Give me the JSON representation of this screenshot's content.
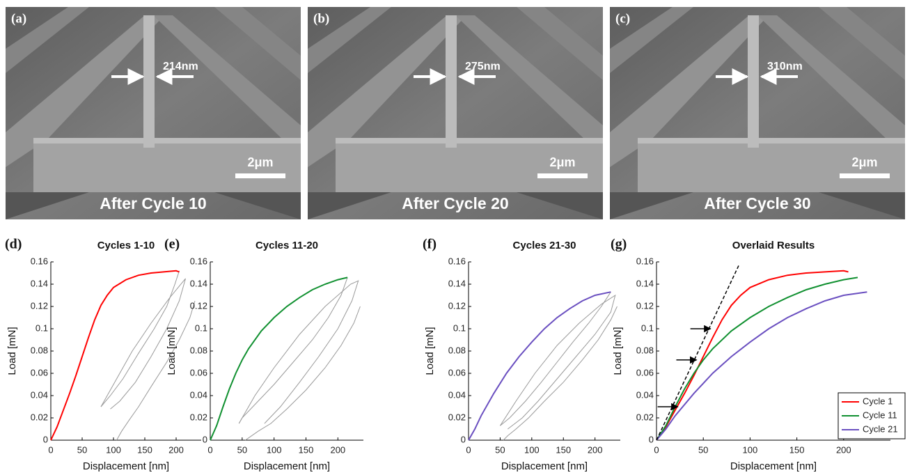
{
  "images": [
    {
      "panel": "(a)",
      "width_label": "214nm",
      "scale_label": "2μm",
      "caption": "After Cycle 10"
    },
    {
      "panel": "(b)",
      "width_label": "275nm",
      "scale_label": "2μm",
      "caption": "After Cycle 20"
    },
    {
      "panel": "(c)",
      "width_label": "310nm",
      "scale_label": "2μm",
      "caption": "After Cycle 30"
    }
  ],
  "chart_data": [
    {
      "type": "line",
      "panel": "(d)",
      "title": "Cycles 1-10",
      "x_label": "Displacement [nm]",
      "y_label": "Load [mN]",
      "xlim": [
        0,
        240
      ],
      "ylim": [
        0,
        0.16
      ],
      "xticks": [
        0,
        50,
        100,
        150,
        200
      ],
      "yticks": [
        0,
        0.02,
        0.04,
        0.06,
        0.08,
        0.1,
        0.12,
        0.14,
        0.16
      ],
      "series": [
        {
          "color": "#999999",
          "x": [
            205,
            198,
            185,
            165,
            140,
            115,
            95,
            80
          ],
          "values": [
            0.152,
            0.14,
            0.12,
            0.1,
            0.078,
            0.055,
            0.04,
            0.03
          ]
        },
        {
          "color": "#999999",
          "x": [
            80,
            100,
            130,
            160,
            190,
            212,
            215,
            205,
            185,
            160,
            135,
            110,
            95
          ],
          "values": [
            0.03,
            0.05,
            0.08,
            0.105,
            0.128,
            0.143,
            0.145,
            0.125,
            0.1,
            0.075,
            0.052,
            0.035,
            0.028
          ]
        },
        {
          "color": "#999999",
          "x": [
            230,
            222,
            205,
            185,
            160,
            140,
            125,
            113,
            105
          ],
          "values": [
            0.125,
            0.11,
            0.09,
            0.07,
            0.048,
            0.03,
            0.018,
            0.008,
            0
          ]
        },
        {
          "color": "#ff0000",
          "x": [
            0,
            10,
            20,
            30,
            40,
            50,
            60,
            70,
            80,
            90,
            100,
            120,
            140,
            160,
            180,
            200,
            205
          ],
          "values": [
            0,
            0.012,
            0.027,
            0.042,
            0.058,
            0.075,
            0.092,
            0.108,
            0.121,
            0.13,
            0.137,
            0.144,
            0.148,
            0.15,
            0.151,
            0.152,
            0.151
          ]
        }
      ]
    },
    {
      "type": "line",
      "panel": "(e)",
      "title": "Cycles 11-20",
      "x_label": "Displacement [nm]",
      "y_label": "Load [mN]",
      "xlim": [
        0,
        240
      ],
      "ylim": [
        0,
        0.16
      ],
      "xticks": [
        0,
        50,
        100,
        150,
        200
      ],
      "yticks": [
        0,
        0.02,
        0.04,
        0.06,
        0.08,
        0.1,
        0.12,
        0.14,
        0.16
      ],
      "series": [
        {
          "color": "#999999",
          "x": [
            215,
            205,
            185,
            160,
            130,
            100,
            75,
            50,
            45
          ],
          "values": [
            0.146,
            0.13,
            0.11,
            0.09,
            0.07,
            0.05,
            0.035,
            0.02,
            0.015
          ]
        },
        {
          "color": "#999999",
          "x": [
            45,
            70,
            100,
            140,
            180,
            220,
            232,
            222,
            200,
            170,
            140,
            110,
            85
          ],
          "values": [
            0.015,
            0.04,
            0.065,
            0.095,
            0.12,
            0.14,
            0.143,
            0.125,
            0.1,
            0.075,
            0.052,
            0.03,
            0.015
          ]
        },
        {
          "color": "#999999",
          "x": [
            235,
            225,
            205,
            180,
            150,
            120,
            95,
            75,
            60,
            55
          ],
          "values": [
            0.12,
            0.105,
            0.085,
            0.065,
            0.045,
            0.028,
            0.015,
            0.008,
            0.002,
            0
          ]
        },
        {
          "color": "#109030",
          "x": [
            0,
            10,
            20,
            30,
            40,
            50,
            60,
            80,
            100,
            120,
            140,
            160,
            180,
            200,
            215
          ],
          "values": [
            0,
            0.013,
            0.03,
            0.046,
            0.06,
            0.072,
            0.082,
            0.098,
            0.11,
            0.12,
            0.128,
            0.135,
            0.14,
            0.144,
            0.146
          ]
        }
      ]
    },
    {
      "type": "line",
      "panel": "(f)",
      "title": "Cycles 21-30",
      "x_label": "Displacement [nm]",
      "y_label": "Load [mN]",
      "xlim": [
        0,
        240
      ],
      "ylim": [
        0,
        0.16
      ],
      "xticks": [
        0,
        50,
        100,
        150,
        200
      ],
      "yticks": [
        0,
        0.02,
        0.04,
        0.06,
        0.08,
        0.1,
        0.12,
        0.14,
        0.16
      ],
      "series": [
        {
          "color": "#999999",
          "x": [
            225,
            210,
            190,
            165,
            140,
            115,
            90,
            65,
            50
          ],
          "values": [
            0.133,
            0.12,
            0.105,
            0.088,
            0.07,
            0.052,
            0.035,
            0.02,
            0.013
          ]
        },
        {
          "color": "#999999",
          "x": [
            50,
            75,
            105,
            140,
            175,
            210,
            232,
            225,
            200,
            170,
            140,
            110,
            85,
            62
          ],
          "values": [
            0.013,
            0.035,
            0.06,
            0.085,
            0.105,
            0.122,
            0.13,
            0.115,
            0.095,
            0.075,
            0.055,
            0.035,
            0.02,
            0.01
          ]
        },
        {
          "color": "#999999",
          "x": [
            235,
            225,
            205,
            180,
            150,
            120,
            95,
            75,
            62,
            55
          ],
          "values": [
            0.12,
            0.108,
            0.09,
            0.072,
            0.052,
            0.035,
            0.02,
            0.01,
            0.004,
            0
          ]
        },
        {
          "color": "#6a4fc0",
          "x": [
            0,
            10,
            20,
            40,
            60,
            80,
            100,
            120,
            140,
            160,
            180,
            200,
            225
          ],
          "values": [
            0,
            0.01,
            0.022,
            0.042,
            0.06,
            0.075,
            0.088,
            0.1,
            0.11,
            0.118,
            0.125,
            0.13,
            0.133
          ]
        }
      ]
    },
    {
      "type": "line",
      "panel": "(g)",
      "title": "Overlaid Results",
      "x_label": "Displacement [nm]",
      "y_label": "Load [mN]",
      "xlim": [
        0,
        250
      ],
      "ylim": [
        0,
        0.16
      ],
      "xticks": [
        0,
        50,
        100,
        150,
        200
      ],
      "yticks": [
        0,
        0.02,
        0.04,
        0.06,
        0.08,
        0.1,
        0.12,
        0.14,
        0.16
      ],
      "legend": "lower right",
      "series": [
        {
          "name": "Cycle 1",
          "color": "#ff0000",
          "x": [
            0,
            10,
            20,
            30,
            40,
            50,
            60,
            70,
            80,
            90,
            100,
            120,
            140,
            160,
            180,
            200,
            205
          ],
          "values": [
            0,
            0.012,
            0.027,
            0.042,
            0.058,
            0.075,
            0.092,
            0.108,
            0.121,
            0.13,
            0.137,
            0.144,
            0.148,
            0.15,
            0.151,
            0.152,
            0.151
          ]
        },
        {
          "name": "Cycle 11",
          "color": "#109030",
          "x": [
            0,
            10,
            20,
            30,
            40,
            50,
            60,
            80,
            100,
            120,
            140,
            160,
            180,
            200,
            215
          ],
          "values": [
            0,
            0.013,
            0.03,
            0.046,
            0.06,
            0.072,
            0.082,
            0.098,
            0.11,
            0.12,
            0.128,
            0.135,
            0.14,
            0.144,
            0.146
          ]
        },
        {
          "name": "Cycle 21",
          "color": "#6a4fc0",
          "x": [
            0,
            10,
            20,
            40,
            60,
            80,
            100,
            120,
            140,
            160,
            180,
            200,
            225
          ],
          "values": [
            0,
            0.01,
            0.022,
            0.042,
            0.06,
            0.075,
            0.088,
            0.1,
            0.11,
            0.118,
            0.125,
            0.13,
            0.133
          ]
        },
        {
          "color": "#000000",
          "dashed": true,
          "x": [
            0,
            88
          ],
          "values": [
            0,
            0.157
          ]
        }
      ],
      "arrows": [
        {
          "x": 60,
          "y": 0.1
        },
        {
          "x": 45,
          "y": 0.072
        },
        {
          "x": 25,
          "y": 0.03
        }
      ]
    }
  ]
}
